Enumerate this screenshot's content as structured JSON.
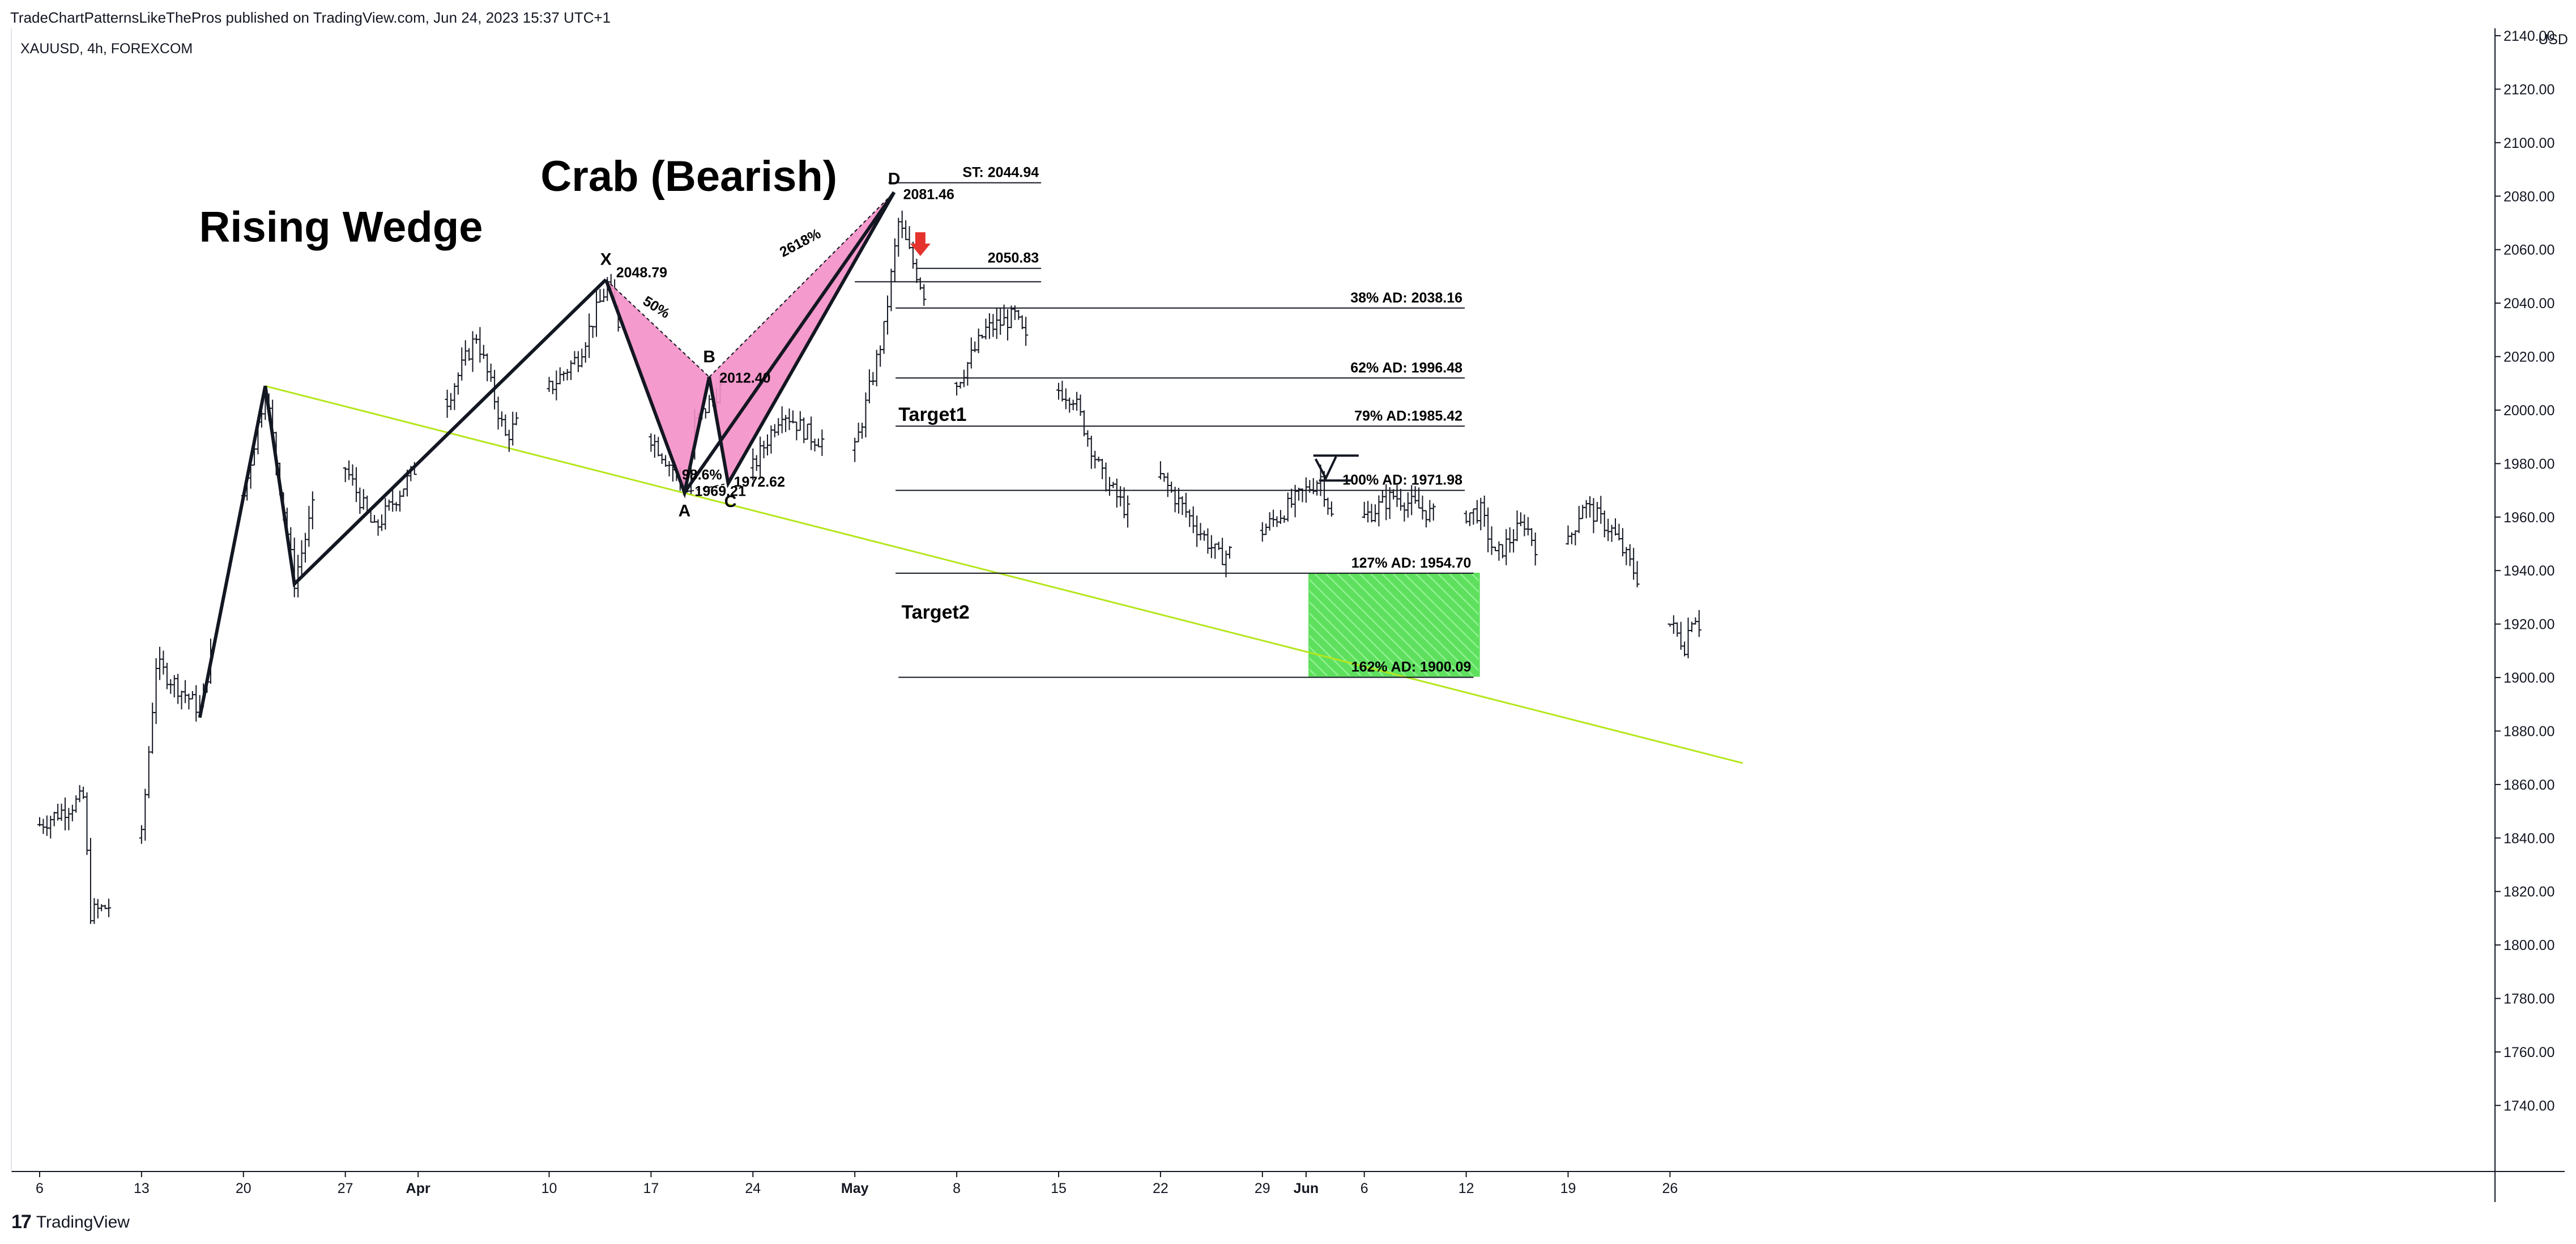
{
  "header": {
    "published": "TradeChartPatternsLikeThePros published on TradingView.com, Jun 24, 2023 15:37 UTC+1",
    "symbol": "XAUUSD, 4h, FOREXCOM",
    "currency": "USD",
    "brand": "TradingView",
    "brand_icon": "tradingview-logo-icon"
  },
  "chart_data": {
    "type": "candlestick-ohlc",
    "ylim": [
      1720,
      2150
    ],
    "y_ticks": [
      1740,
      1760,
      1780,
      1800,
      1820,
      1840,
      1860,
      1880,
      1900,
      1920,
      1940,
      1960,
      1980,
      2000,
      2020,
      2040,
      2060,
      2080,
      2100,
      2120,
      2140
    ],
    "y_tick_labels": [
      "1740.00",
      "1760.00",
      "1780.00",
      "1800.00",
      "1820.00",
      "1840.00",
      "1860.00",
      "1880.00",
      "1900.00",
      "1920.00",
      "1940.00",
      "1960.00",
      "1980.00",
      "2000.00",
      "2020.00",
      "2040.00",
      "2060.00",
      "2080.00",
      "2100.00",
      "2120.00",
      "2140.00"
    ],
    "x_ticks": [
      {
        "day": 0,
        "label": "6",
        "bold": false
      },
      {
        "day": 7,
        "label": "13",
        "bold": false
      },
      {
        "day": 14,
        "label": "20",
        "bold": false
      },
      {
        "day": 21,
        "label": "27",
        "bold": false
      },
      {
        "day": 26,
        "label": "Apr",
        "bold": true
      },
      {
        "day": 35,
        "label": "10",
        "bold": false
      },
      {
        "day": 42,
        "label": "17",
        "bold": false
      },
      {
        "day": 49,
        "label": "24",
        "bold": false
      },
      {
        "day": 56,
        "label": "May",
        "bold": true
      },
      {
        "day": 63,
        "label": "8",
        "bold": false
      },
      {
        "day": 70,
        "label": "15",
        "bold": false
      },
      {
        "day": 77,
        "label": "22",
        "bold": false
      },
      {
        "day": 84,
        "label": "29",
        "bold": false
      },
      {
        "day": 87,
        "label": "Jun",
        "bold": true
      },
      {
        "day": 91,
        "label": "6",
        "bold": false
      },
      {
        "day": 98,
        "label": "12",
        "bold": false
      },
      {
        "day": 105,
        "label": "19",
        "bold": false
      },
      {
        "day": 112,
        "label": "26",
        "bold": false
      }
    ],
    "price_path": [
      {
        "day": 0,
        "price": 1845
      },
      {
        "day": 3,
        "price": 1855
      },
      {
        "day": 3.5,
        "price": 1812
      },
      {
        "day": 5,
        "price": 1815
      },
      {
        "day": 7,
        "price": 1840
      },
      {
        "day": 8,
        "price": 1905
      },
      {
        "day": 11,
        "price": 1888
      },
      {
        "day": 15.5,
        "price": 2008
      },
      {
        "day": 17.5,
        "price": 1936
      },
      {
        "day": 20,
        "price": 1990
      },
      {
        "day": 23,
        "price": 1955
      },
      {
        "day": 26,
        "price": 1980
      },
      {
        "day": 30,
        "price": 2028
      },
      {
        "day": 32,
        "price": 1990
      },
      {
        "day": 37,
        "price": 2020
      },
      {
        "day": 39,
        "price": 2047
      },
      {
        "day": 42,
        "price": 1990
      },
      {
        "day": 44.5,
        "price": 1970
      },
      {
        "day": 45,
        "price": 1995
      },
      {
        "day": 47,
        "price": 2010
      },
      {
        "day": 48.5,
        "price": 1973
      },
      {
        "day": 51,
        "price": 2000
      },
      {
        "day": 53,
        "price": 1990
      },
      {
        "day": 56,
        "price": 1985
      },
      {
        "day": 58,
        "price": 2030
      },
      {
        "day": 59,
        "price": 2070
      },
      {
        "day": 61,
        "price": 2040
      },
      {
        "day": 62,
        "price": 2000
      },
      {
        "day": 65,
        "price": 2030
      },
      {
        "day": 67,
        "price": 2035
      },
      {
        "day": 69,
        "price": 2010
      },
      {
        "day": 71,
        "price": 2005
      },
      {
        "day": 73,
        "price": 1975
      },
      {
        "day": 75,
        "price": 1960
      },
      {
        "day": 77,
        "price": 1975
      },
      {
        "day": 79,
        "price": 1960
      },
      {
        "day": 81,
        "price": 1945
      },
      {
        "day": 83,
        "price": 1950
      },
      {
        "day": 85,
        "price": 1960
      },
      {
        "day": 88,
        "price": 1975
      },
      {
        "day": 89,
        "price": 1955
      },
      {
        "day": 91,
        "price": 1960
      },
      {
        "day": 93,
        "price": 1968
      },
      {
        "day": 96,
        "price": 1960
      },
      {
        "day": 99,
        "price": 1962
      },
      {
        "day": 100,
        "price": 1945
      },
      {
        "day": 102,
        "price": 1958
      },
      {
        "day": 104,
        "price": 1935
      },
      {
        "day": 106,
        "price": 1965
      },
      {
        "day": 108,
        "price": 1955
      },
      {
        "day": 110,
        "price": 1935
      },
      {
        "day": 112,
        "price": 1920
      },
      {
        "day": 113,
        "price": 1912
      },
      {
        "day": 113.6,
        "price": 1925
      },
      {
        "day": 114,
        "price": 1920
      }
    ],
    "annotations": {
      "titles": [
        {
          "text": "Rising Wedge",
          "day": 20.7,
          "price": 2063
        },
        {
          "text": "Crab (Bearish)",
          "day": 44.6,
          "price": 2082
        }
      ],
      "rising_wedge_path": [
        {
          "day": 11,
          "price": 1885
        },
        {
          "day": 15.5,
          "price": 2009
        },
        {
          "day": 17.5,
          "price": 1935
        },
        {
          "day": 38.9,
          "price": 2048.79
        }
      ],
      "support_line": {
        "from": {
          "day": 15.5,
          "price": 2009
        },
        "to": {
          "day": 117,
          "price": 1868
        },
        "color": "#b5e61d"
      },
      "crab_points": [
        {
          "label": "X",
          "day": 38.9,
          "price": 2048.79,
          "value": "2048.79"
        },
        {
          "label": "A",
          "day": 44.3,
          "price": 1969.21,
          "value": "1969.21"
        },
        {
          "label": "B",
          "day": 46.0,
          "price": 2012.4,
          "value": "2012.40"
        },
        {
          "label": "C",
          "day": 47.3,
          "price": 1972.62,
          "value": "1972.62"
        },
        {
          "label": "D",
          "day": 58.7,
          "price": 2081.46,
          "value": "2081.46"
        }
      ],
      "ratio_labels": [
        {
          "text": "50%",
          "day": 42.2,
          "price": 2037
        },
        {
          "text": "2618%",
          "day": 52.4,
          "price": 2061
        },
        {
          "text": "98.6%",
          "day": 45.5,
          "price": 1974
        }
      ],
      "levels": [
        {
          "text": "ST: 2044.94",
          "price": 2085,
          "from_day": 58.3,
          "to_day": 68.8
        },
        {
          "text": "2050.83",
          "price": 2053,
          "from_day": 60.2,
          "to_day": 68.8
        },
        {
          "text": "",
          "price": 2048,
          "from_day": 56,
          "to_day": 68.8
        },
        {
          "text": "38% AD: 2038.16",
          "price": 2038.16,
          "from_day": 58.8,
          "to_day": 97.9
        },
        {
          "text": "62% AD: 1996.48",
          "price": 2012,
          "from_day": 58.8,
          "to_day": 97.9
        },
        {
          "text": "79% AD:1985.42",
          "price": 1994,
          "from_day": 58.8,
          "to_day": 97.9
        },
        {
          "text": "100% AD: 1971.98",
          "price": 1970,
          "from_day": 58.8,
          "to_day": 97.9
        },
        {
          "text": "127% AD: 1954.70",
          "price": 1939,
          "from_day": 58.8,
          "to_day": 98.5
        },
        {
          "text": "162% AD: 1900.09",
          "price": 1900.09,
          "from_day": 59.0,
          "to_day": 98.5
        }
      ],
      "targets": [
        {
          "text": "Target1",
          "day": 59.0,
          "price": 1996
        },
        {
          "text": "Target2",
          "day": 59.2,
          "price": 1922
        }
      ],
      "target_zone": {
        "from_day": 87.2,
        "to_day": 98.9,
        "top": 1939,
        "bottom": 1900.5,
        "color": "#5ee05e"
      },
      "short_entry_arrow": {
        "day": 60.5,
        "price": 2061,
        "color": "#e5322d",
        "icon": "down-arrow-icon"
      }
    }
  }
}
